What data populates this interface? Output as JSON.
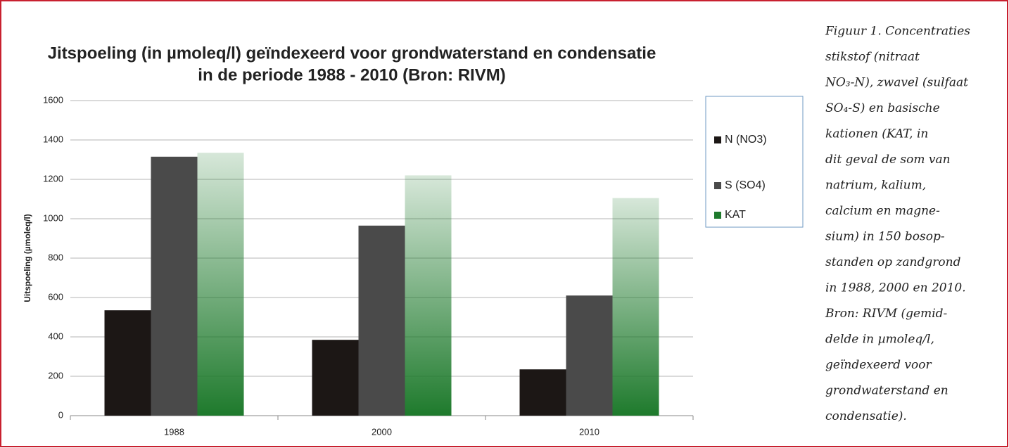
{
  "chart_data": {
    "type": "bar",
    "title_lines": [
      "Jitspoeling (in µmoleq/l) geïndexeerd voor grondwaterstand en condensatie",
      "in de periode 1988 - 2010 (Bron: RIVM)"
    ],
    "y_label": "Uitspoeling (µmoleq/l)",
    "categories": [
      "1988",
      "2000",
      "2010"
    ],
    "series": [
      {
        "name": "N (NO3)",
        "color": "#1c1715",
        "values": [
          535,
          385,
          235
        ]
      },
      {
        "name": "S (SO4)",
        "color": "#4a4a4a",
        "values": [
          1315,
          965,
          610
        ]
      },
      {
        "name": "KAT",
        "color": "#1e7a2c",
        "values": [
          1335,
          1220,
          1105
        ]
      }
    ],
    "ylim": [
      0,
      1600
    ],
    "yticks": [
      0,
      200,
      400,
      600,
      800,
      1000,
      1200,
      1400,
      1600
    ],
    "grid": true,
    "legend": "right"
  },
  "caption_lines": [
    "Figuur 1. Concentraties",
    "stikstof (nitraat",
    "NO₃-N), zwavel (sulfaat",
    "SO₄-S) en basische",
    "kationen (KAT, in",
    "dit geval de som van",
    "natrium, kalium,",
    "calcium en magne-",
    "sium) in 150 bosop-",
    "standen op zandgrond",
    "in 1988, 2000 en 2010.",
    "Bron: RIVM (gemid-",
    "delde in µmoleq/l,",
    "geïndexeerd voor",
    "grondwaterstand en",
    "condensatie)."
  ]
}
